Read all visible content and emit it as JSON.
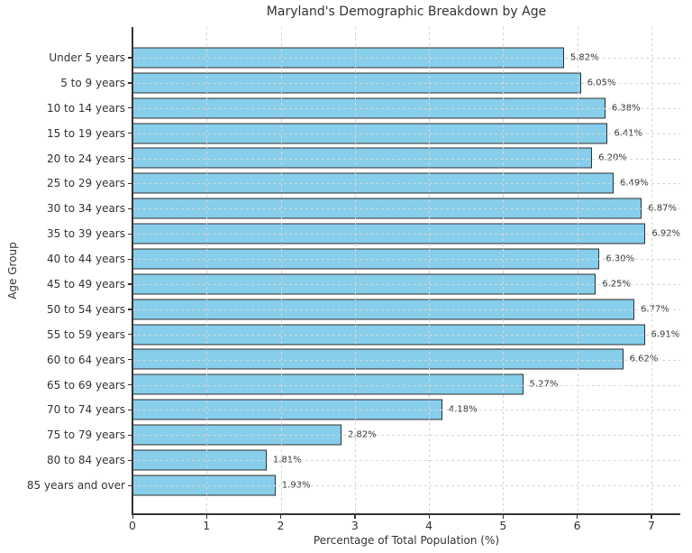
{
  "chart_data": {
    "type": "bar",
    "orientation": "horizontal",
    "title": "Maryland's Demographic Breakdown by Age",
    "xlabel": "Percentage of Total Population (%)",
    "ylabel": "Age Group",
    "categories": [
      "Under 5 years",
      "5 to 9 years",
      "10 to 14 years",
      "15 to 19 years",
      "20 to 24 years",
      "25 to 29 years",
      "30 to 34 years",
      "35 to 39 years",
      "40 to 44 years",
      "45 to 49 years",
      "50 to 54 years",
      "55 to 59 years",
      "60 to 64 years",
      "65 to 69 years",
      "70 to 74 years",
      "75 to 79 years",
      "80 to 84 years",
      "85 years and over"
    ],
    "values": [
      5.82,
      6.05,
      6.38,
      6.41,
      6.2,
      6.49,
      6.87,
      6.92,
      6.3,
      6.25,
      6.77,
      6.91,
      6.62,
      5.27,
      4.18,
      2.82,
      1.81,
      1.93
    ],
    "value_labels": [
      "5.82%",
      "6.05%",
      "6.38%",
      "6.41%",
      "6.20%",
      "6.49%",
      "6.87%",
      "6.92%",
      "6.30%",
      "6.25%",
      "6.77%",
      "6.91%",
      "6.62%",
      "5.27%",
      "4.18%",
      "2.82%",
      "1.81%",
      "1.93%"
    ],
    "x_ticks": [
      "0",
      "1",
      "2",
      "3",
      "4",
      "5",
      "6",
      "7"
    ],
    "xlim": [
      0,
      7.39
    ],
    "grid": "dashed",
    "legend": "none",
    "colors": {
      "bar_fill": "#87CEEB",
      "bar_edge": "#2f2f2f",
      "grid": "#d6d6d6",
      "axis": "#333333",
      "text": "#333333",
      "background": "#ffffff"
    }
  }
}
